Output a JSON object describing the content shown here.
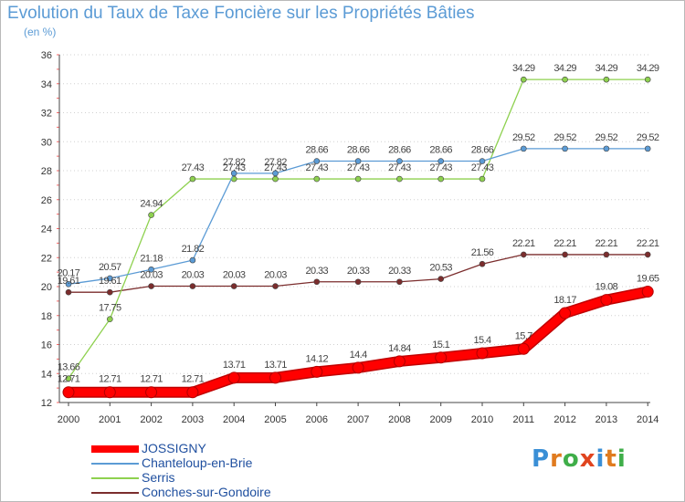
{
  "title": "Evolution du Taux de Taxe Foncière sur les Propriétés Bâties",
  "unit": "(en %)",
  "logo": {
    "text": "Proxiti",
    "colors": [
      "#3a8fd6",
      "#e07b1f",
      "#3fae49",
      "#e0441f",
      "#3a8fd6",
      "#e07b1f",
      "#3fae49"
    ]
  },
  "chart_data": {
    "type": "line",
    "title": "Evolution du Taux de Taxe Foncière sur les Propriétés Bâties",
    "ylabel": "(en %)",
    "xlabel": "",
    "x": [
      "2000",
      "2001",
      "2002",
      "2003",
      "2004",
      "2005",
      "2006",
      "2007",
      "2008",
      "2009",
      "2010",
      "2011",
      "2012",
      "2013",
      "2014"
    ],
    "ylim": [
      12,
      36
    ],
    "yticks": [
      "12",
      "14",
      "16",
      "18",
      "20",
      "22",
      "24",
      "26",
      "28",
      "30",
      "32",
      "34",
      "36"
    ],
    "grid": "horizontal dotted",
    "legend": "bottom-left",
    "series": [
      {
        "name": "JOSSIGNY",
        "color": "#ff0000",
        "values": [
          12.71,
          12.71,
          12.71,
          12.71,
          13.71,
          13.71,
          14.12,
          14.4,
          14.84,
          15.1,
          15.4,
          15.7,
          18.17,
          19.08,
          19.65
        ],
        "labels": [
          "12.71",
          "12.71",
          "12.71",
          "12.71",
          "13.71",
          "13.71",
          "14.12",
          "14.4",
          "14.84",
          "15.1",
          "15.4",
          "15.7",
          "18.17",
          "19.08",
          "19.65"
        ]
      },
      {
        "name": "Chanteloup-en-Brie",
        "color": "#5b9bd5",
        "values": [
          20.17,
          20.57,
          21.18,
          21.82,
          27.82,
          27.82,
          28.66,
          28.66,
          28.66,
          28.66,
          28.66,
          29.52,
          29.52,
          29.52,
          29.52
        ],
        "labels": [
          "20.17",
          "20.57",
          "21.18",
          "21.82",
          "27.82",
          "27.82",
          "28.66",
          "28.66",
          "28.66",
          "28.66",
          "28.66",
          "29.52",
          "29.52",
          "29.52",
          "29.52"
        ]
      },
      {
        "name": "Serris",
        "color": "#8ed14f",
        "values": [
          13.66,
          17.75,
          24.94,
          27.43,
          27.43,
          27.43,
          27.43,
          27.43,
          27.43,
          27.43,
          27.43,
          34.29,
          34.29,
          34.29,
          34.29
        ],
        "labels": [
          "13.66",
          "17.75",
          "24.94",
          "27.43",
          "27.43",
          "27.43",
          "27.43",
          "27.43",
          "27.43",
          "27.43",
          "27.43",
          "34.29",
          "34.29",
          "34.29",
          "34.29"
        ]
      },
      {
        "name": "Conches-sur-Gondoire",
        "color": "#7b2d2d",
        "values": [
          19.61,
          19.61,
          20.03,
          20.03,
          20.03,
          20.03,
          20.33,
          20.33,
          20.33,
          20.53,
          21.56,
          22.21,
          22.21,
          22.21,
          22.21
        ],
        "labels": [
          "19.61",
          "19.61",
          "20.03",
          "20.03",
          "20.03",
          "20.03",
          "20.33",
          "20.33",
          "20.33",
          "20.53",
          "21.56",
          "22.21",
          "22.21",
          "22.21",
          "22.21"
        ]
      }
    ]
  }
}
